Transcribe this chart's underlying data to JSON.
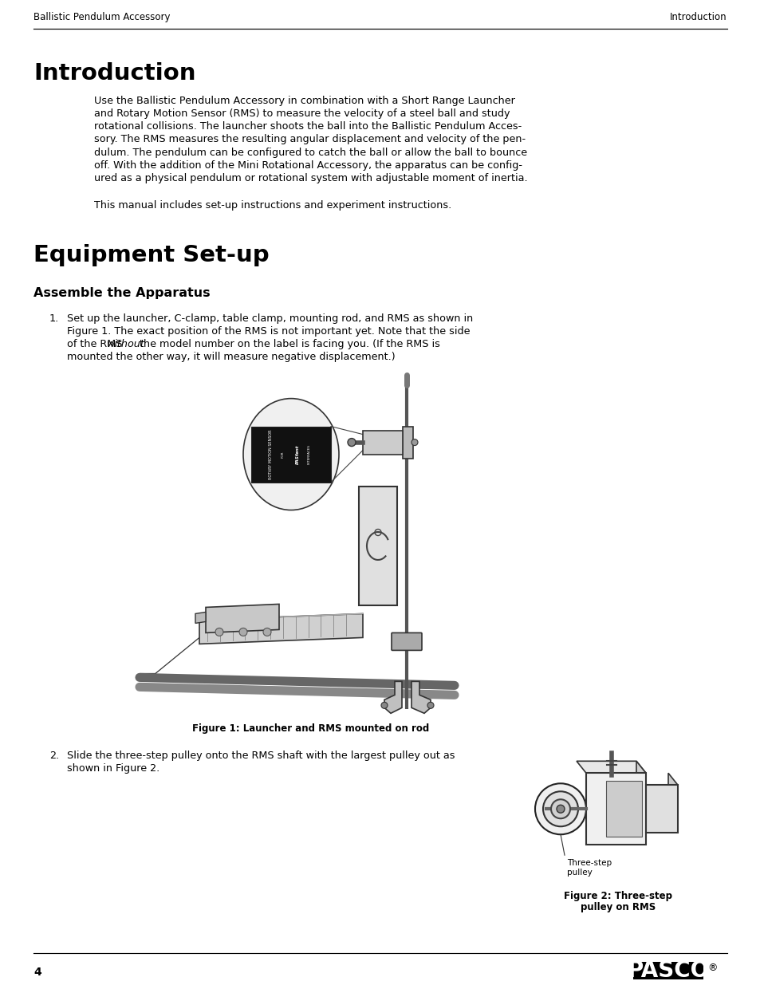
{
  "header_left": "Ballistic Pendulum Accessory",
  "header_right": "Introduction",
  "title1": "Introduction",
  "intro_lines": [
    "Use the Ballistic Pendulum Accessory in combination with a Short Range Launcher",
    "and Rotary Motion Sensor (RMS) to measure the velocity of a steel ball and study",
    "rotational collisions. The launcher shoots the ball into the Ballistic Pendulum Acces-",
    "sory. The RMS measures the resulting angular displacement and velocity of the pen-",
    "dulum. The pendulum can be configured to catch the ball or allow the ball to bounce",
    "off. With the addition of the Mini Rotational Accessory, the apparatus can be config-",
    "ured as a physical pendulum or rotational system with adjustable moment of inertia."
  ],
  "intro_line2": "This manual includes set-up instructions and experiment instructions.",
  "title2": "Equipment Set-up",
  "subtitle1": "Assemble the Apparatus",
  "step1_line1": "Set up the launcher, C-clamp, table clamp, mounting rod, and RMS as shown in",
  "step1_line2": "Figure 1. The exact position of the RMS is not important yet. Note that the side",
  "step1_line3a": "of the RMS ",
  "step1_line3b": "without",
  "step1_line3c": " the model number on the label is facing you. (If the RMS is",
  "step1_line4": "mounted the other way, it will measure negative displacement.)",
  "fig1_caption": "Figure 1: Launcher and RMS mounted on rod",
  "step2_line1": "Slide the three-step pulley onto the RMS shaft with the largest pulley out as",
  "step2_line2": "shown in Figure 2.",
  "fig2_label": "Three-step\npulley",
  "fig2_caption_line1": "Figure 2: Three-step",
  "fig2_caption_line2": "pulley on RMS",
  "footer_num": "4",
  "bg": "#ffffff",
  "fg": "#000000"
}
